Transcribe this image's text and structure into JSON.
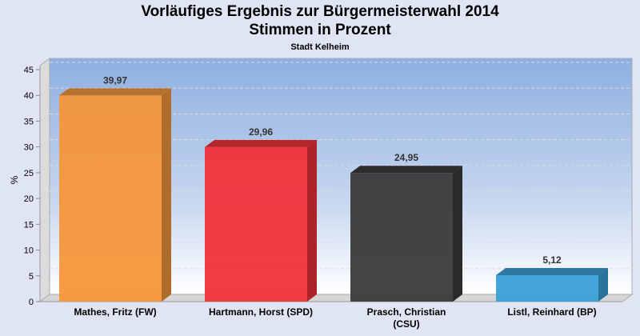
{
  "chart_data": {
    "type": "bar",
    "title": "Vorläufiges Ergebnis zur Bürgermeisterwahl 2014",
    "subtitle": "Stimmen in Prozent",
    "subsubtitle": "Stadt Kelheim",
    "xlabel": "",
    "ylabel": "%",
    "ylim": [
      0,
      45
    ],
    "yticks": [
      0,
      5,
      10,
      15,
      20,
      25,
      30,
      35,
      40,
      45
    ],
    "grid": true,
    "categories": [
      [
        "Mathes, Fritz (FW)"
      ],
      [
        "Hartmann, Horst (SPD)"
      ],
      [
        "Prasch, Christian",
        "(CSU)"
      ],
      [
        "Listl, Reinhard (BP)"
      ]
    ],
    "values": [
      39.97,
      29.96,
      24.95,
      5.12
    ],
    "data_labels": [
      "39,97",
      "29,96",
      "24,95",
      "5,12"
    ],
    "colors": [
      "#f5963a",
      "#f03238",
      "#3a3a3a",
      "#3aa0d6"
    ]
  }
}
